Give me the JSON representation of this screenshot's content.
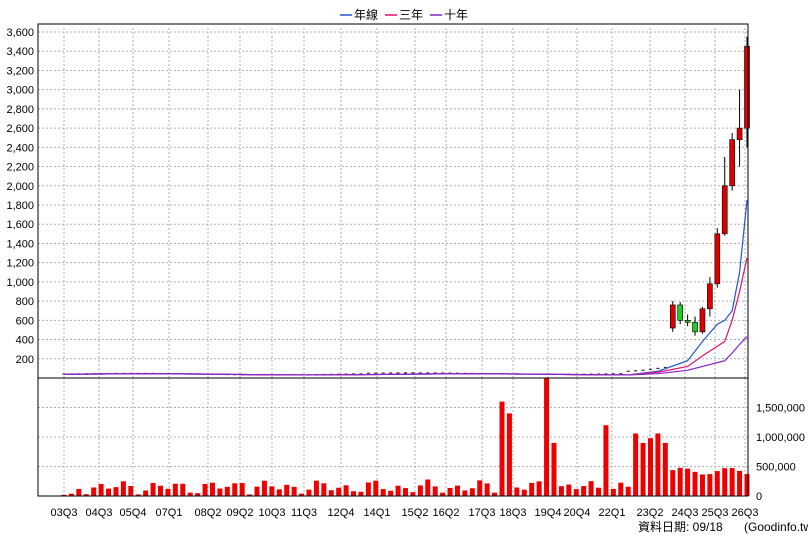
{
  "chart_data": [
    {
      "type": "candlestick",
      "legend": [
        "年線",
        "三年",
        "十年"
      ],
      "ylim": [
        0,
        3600
      ],
      "yticks": [
        "200",
        "400",
        "600",
        "800",
        "1,000",
        "1,200",
        "1,400",
        "1,600",
        "1,800",
        "2,000",
        "2,200",
        "2,400",
        "2,600",
        "2,800",
        "3,000",
        "3,200",
        "3,400",
        "3,600"
      ],
      "xticks": [
        "03Q3",
        "04Q3",
        "05Q4",
        "07Q1",
        "08Q2",
        "09Q2",
        "10Q3",
        "11Q3",
        "12Q4",
        "14Q1",
        "15Q2",
        "16Q2",
        "17Q3",
        "18Q3",
        "19Q4",
        "20Q4",
        "22Q1",
        "23Q2",
        "24Q3",
        "25Q3",
        "26Q3"
      ],
      "grid": true,
      "colors": {
        "up": "#dd0000",
        "down": "#22cc22",
        "year_line": "#2255cc",
        "three_year": "#dd1177",
        "ten_year": "#8822cc"
      },
      "candles": [
        {
          "o": 520,
          "h": 800,
          "l": 480,
          "c": 760
        },
        {
          "o": 760,
          "h": 790,
          "l": 560,
          "c": 600
        },
        {
          "o": 600,
          "h": 660,
          "l": 540,
          "c": 580
        },
        {
          "o": 580,
          "h": 640,
          "l": 440,
          "c": 480
        },
        {
          "o": 480,
          "h": 740,
          "l": 460,
          "c": 720
        },
        {
          "o": 720,
          "h": 1050,
          "l": 640,
          "c": 980
        },
        {
          "o": 980,
          "h": 1560,
          "l": 940,
          "c": 1500
        },
        {
          "o": 1500,
          "h": 2300,
          "l": 1480,
          "c": 2000
        },
        {
          "o": 2000,
          "h": 2550,
          "l": 1950,
          "c": 2480
        },
        {
          "o": 2480,
          "h": 3000,
          "l": 2200,
          "c": 2600
        },
        {
          "o": 2600,
          "h": 3550,
          "l": 2400,
          "c": 3450
        }
      ]
    },
    {
      "type": "bar",
      "ylim": [
        0,
        2000000
      ],
      "yticks": [
        "0",
        "500,000",
        "1,000,000",
        "1,500,000"
      ],
      "bar_color": "#ee0000"
    }
  ],
  "footer": {
    "date_label": "資料日期: 09/18",
    "source": "(Goodinfo.tw)"
  }
}
